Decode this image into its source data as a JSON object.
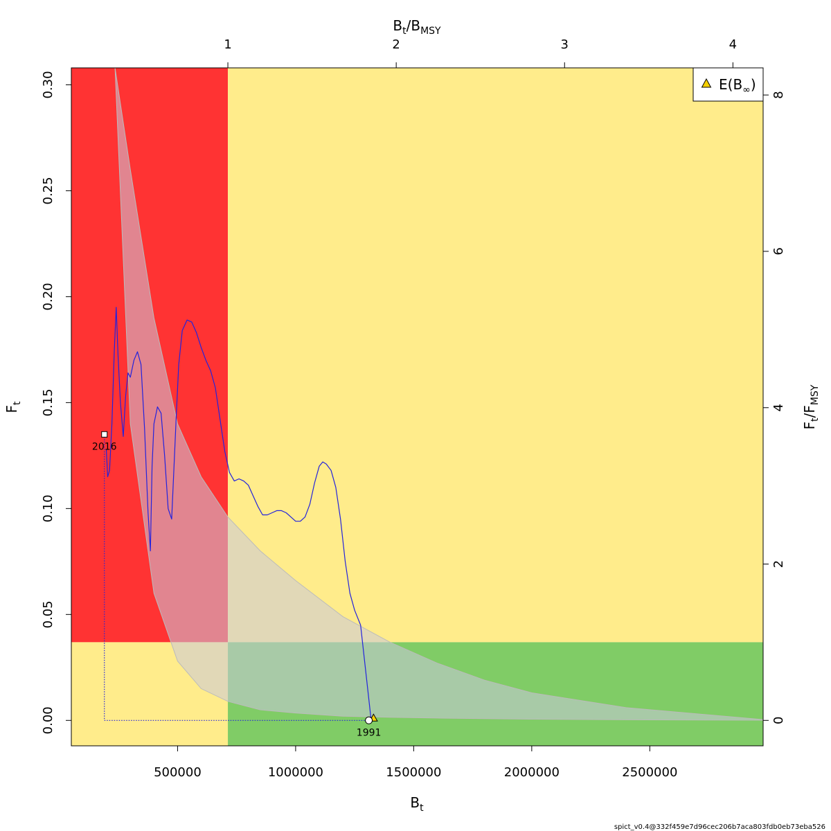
{
  "chart_data": {
    "type": "line",
    "title": "",
    "footer": "spict_v0.4@332f459e7d96cec206b7aca803fdb0eb73eba526",
    "axes": {
      "bottom": {
        "label_main": "B",
        "label_sub": "t",
        "range": [
          50000,
          2980000
        ],
        "ticks": [
          500000,
          1000000,
          1500000,
          2000000,
          2500000
        ],
        "tick_labels": [
          "500000",
          "1000000",
          "1500000",
          "2000000",
          "2500000"
        ]
      },
      "left": {
        "label_main": "F",
        "label_sub": "t",
        "range": [
          -0.012,
          0.308
        ],
        "ticks": [
          0.0,
          0.05,
          0.1,
          0.15,
          0.2,
          0.25,
          0.3
        ],
        "tick_labels": [
          "0.00",
          "0.05",
          "0.10",
          "0.15",
          "0.20",
          "0.25",
          "0.30"
        ]
      },
      "top": {
        "label_a": "B",
        "label_a_sub": "t",
        "label_b": "B",
        "label_b_sub": "MSY",
        "bmsy": 713000,
        "ticks": [
          1,
          2,
          3,
          4
        ],
        "tick_labels": [
          "1",
          "2",
          "3",
          "4"
        ]
      },
      "right": {
        "label_a": "F",
        "label_a_sub": "t",
        "label_b": "F",
        "label_b_sub": "MSY",
        "fmsy": 0.0369,
        "ticks": [
          0,
          2,
          4,
          6,
          8
        ],
        "tick_labels": [
          "0",
          "2",
          "4",
          "6",
          "8"
        ]
      }
    },
    "zones": {
      "red": "#ff3333",
      "yellow": "#ffec8b",
      "green": "#80cc66",
      "ci_fill": "#c8c8dc",
      "ci_opacity": 0.55,
      "pink": "#e0a0a0",
      "pink_xmin": 235000
    },
    "msy_curve": {
      "name": "MSY curve",
      "color": "#bbbbbb",
      "x": [
        235000,
        300000,
        400000,
        500000,
        600000,
        713000,
        850000,
        1000000,
        1200000,
        1400000,
        1600000,
        1800000,
        2000000,
        2400000,
        2980000
      ],
      "upper": [
        0.308,
        0.26,
        0.19,
        0.14,
        0.115,
        0.096,
        0.08,
        0.066,
        0.049,
        0.0369,
        0.027,
        0.019,
        0.013,
        0.006,
        0.0004
      ],
      "lower": [
        0.308,
        0.14,
        0.06,
        0.028,
        0.015,
        0.009,
        0.005,
        0.0035,
        0.002,
        0.0015,
        0.0011,
        0.0008,
        0.0006,
        0.0003,
        0.0001
      ]
    },
    "series": [
      {
        "color": "#2222dd",
        "x": [
          1320000,
          1300000,
          1275000,
          1250000,
          1230000,
          1210000,
          1190000,
          1170000,
          1150000,
          1130000,
          1115000,
          1100000,
          1080000,
          1060000,
          1040000,
          1020000,
          1000000,
          980000,
          960000,
          940000,
          920000,
          900000,
          880000,
          860000,
          840000,
          820000,
          800000,
          780000,
          760000,
          740000,
          720000,
          700000,
          680000,
          660000,
          640000,
          620000,
          600000,
          580000,
          560000,
          540000,
          520000,
          505000,
          495000,
          485000,
          475000,
          460000,
          445000,
          430000,
          415000,
          400000,
          392000,
          385000,
          375000,
          360000,
          345000,
          330000,
          315000,
          300000,
          290000,
          280000,
          270000,
          258000,
          248000,
          240000,
          232000,
          222000,
          212000,
          204000,
          198000
        ],
        "y": [
          0.0,
          0.02,
          0.045,
          0.052,
          0.06,
          0.075,
          0.095,
          0.11,
          0.118,
          0.121,
          0.122,
          0.12,
          0.112,
          0.102,
          0.096,
          0.094,
          0.094,
          0.096,
          0.098,
          0.099,
          0.099,
          0.098,
          0.097,
          0.097,
          0.101,
          0.106,
          0.111,
          0.113,
          0.114,
          0.113,
          0.117,
          0.127,
          0.142,
          0.157,
          0.165,
          0.17,
          0.176,
          0.183,
          0.188,
          0.189,
          0.184,
          0.168,
          0.145,
          0.12,
          0.095,
          0.1,
          0.125,
          0.145,
          0.148,
          0.14,
          0.12,
          0.08,
          0.098,
          0.138,
          0.168,
          0.174,
          0.17,
          0.162,
          0.164,
          0.153,
          0.134,
          0.15,
          0.172,
          0.195,
          0.175,
          0.14,
          0.118,
          0.115,
          0.128
        ]
      }
    ],
    "points": [
      {
        "label": "1991",
        "x": 1310000,
        "y": 0.0
      },
      {
        "label": "2016",
        "x": 190000,
        "y": 0.135
      }
    ],
    "legend": {
      "position": "top-right",
      "entry_main": "E(B",
      "entry_sub": "∞",
      "entry_close": ")",
      "color": "#f5d000"
    },
    "legend_point": {
      "x": 1330000,
      "y": 0.001
    },
    "dotted_path": {
      "x": [
        190000,
        190000,
        1310000
      ],
      "y": [
        0.135,
        0.0,
        0.0
      ]
    }
  }
}
